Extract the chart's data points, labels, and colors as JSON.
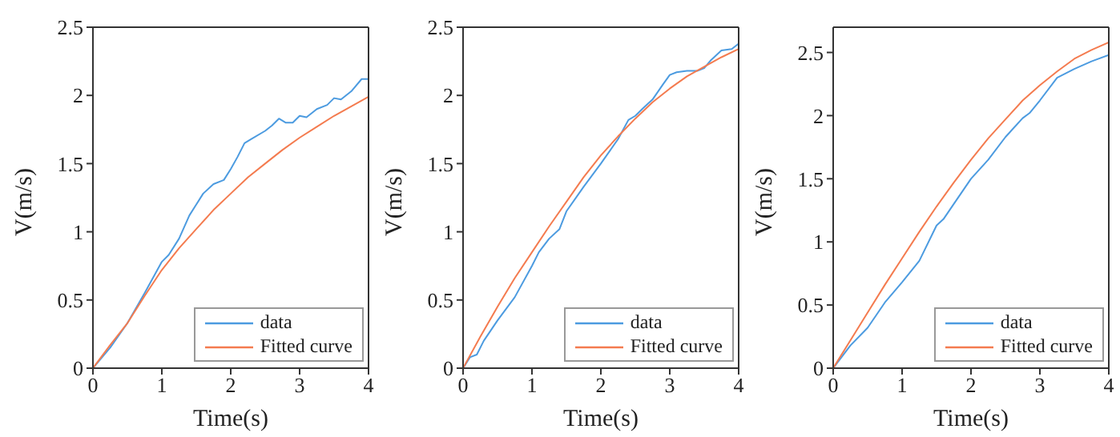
{
  "chart_data": [
    {
      "type": "line",
      "xlabel": "Time(s)",
      "ylabel": "V(m/s)",
      "xlim": [
        0,
        4
      ],
      "ylim": [
        0,
        2.5
      ],
      "xticks": [
        0,
        1,
        2,
        3,
        4
      ],
      "yticks": [
        0,
        0.5,
        1,
        1.5,
        2,
        2.5
      ],
      "legend": "bottom right",
      "marker": "none",
      "line_style": "solid",
      "series": [
        {
          "name": "data",
          "color": "#4c9be0",
          "x": [
            0,
            0.25,
            0.5,
            0.75,
            1,
            1.1,
            1.25,
            1.4,
            1.5,
            1.6,
            1.75,
            1.9,
            2,
            2.1,
            2.2,
            2.3,
            2.5,
            2.6,
            2.7,
            2.8,
            2.9,
            3,
            3.1,
            3.25,
            3.4,
            3.5,
            3.6,
            3.75,
            3.9,
            4
          ],
          "values": [
            0,
            0.15,
            0.33,
            0.55,
            0.78,
            0.83,
            0.95,
            1.12,
            1.2,
            1.28,
            1.35,
            1.38,
            1.46,
            1.55,
            1.65,
            1.68,
            1.74,
            1.78,
            1.83,
            1.8,
            1.8,
            1.85,
            1.84,
            1.9,
            1.93,
            1.98,
            1.97,
            2.03,
            2.12,
            2.12
          ]
        },
        {
          "name": "Fitted curve",
          "color": "#f47b4f",
          "x": [
            0,
            0.25,
            0.5,
            0.75,
            1,
            1.25,
            1.5,
            1.75,
            2,
            2.25,
            2.5,
            2.75,
            3,
            3.25,
            3.5,
            3.75,
            4
          ],
          "values": [
            0,
            0.17,
            0.33,
            0.53,
            0.72,
            0.88,
            1.02,
            1.16,
            1.28,
            1.4,
            1.5,
            1.6,
            1.69,
            1.77,
            1.85,
            1.92,
            1.99
          ]
        }
      ]
    },
    {
      "type": "line",
      "xlabel": "Time(s)",
      "ylabel": "V(m/s)",
      "xlim": [
        0,
        4
      ],
      "ylim": [
        0,
        2.5
      ],
      "xticks": [
        0,
        1,
        2,
        3,
        4
      ],
      "yticks": [
        0,
        0.5,
        1,
        1.5,
        2,
        2.5
      ],
      "legend": "bottom right",
      "marker": "none",
      "line_style": "solid",
      "series": [
        {
          "name": "data",
          "color": "#4c9be0",
          "x": [
            0,
            0.1,
            0.2,
            0.3,
            0.5,
            0.75,
            1,
            1.1,
            1.25,
            1.4,
            1.5,
            1.75,
            2,
            2.25,
            2.4,
            2.5,
            2.6,
            2.75,
            2.9,
            3,
            3.1,
            3.25,
            3.4,
            3.5,
            3.6,
            3.75,
            3.9,
            4
          ],
          "values": [
            0,
            0.08,
            0.1,
            0.2,
            0.35,
            0.52,
            0.75,
            0.85,
            0.95,
            1.02,
            1.15,
            1.33,
            1.5,
            1.68,
            1.82,
            1.85,
            1.9,
            1.97,
            2.08,
            2.15,
            2.17,
            2.18,
            2.18,
            2.2,
            2.26,
            2.33,
            2.34,
            2.38
          ]
        },
        {
          "name": "Fitted curve",
          "color": "#f47b4f",
          "x": [
            0,
            0.25,
            0.5,
            0.75,
            1,
            1.25,
            1.5,
            1.75,
            2,
            2.25,
            2.5,
            2.75,
            3,
            3.25,
            3.5,
            3.75,
            4
          ],
          "values": [
            0,
            0.23,
            0.45,
            0.66,
            0.85,
            1.04,
            1.22,
            1.4,
            1.56,
            1.7,
            1.83,
            1.95,
            2.05,
            2.14,
            2.21,
            2.28,
            2.34
          ]
        }
      ]
    },
    {
      "type": "line",
      "xlabel": "Time(s)",
      "ylabel": "V(m/s)",
      "xlim": [
        0,
        4
      ],
      "ylim": [
        0,
        2.7
      ],
      "xticks": [
        0,
        1,
        2,
        3,
        4
      ],
      "yticks": [
        0,
        0.5,
        1,
        1.5,
        2,
        2.5
      ],
      "legend": "bottom right",
      "marker": "none",
      "line_style": "solid",
      "series": [
        {
          "name": "data",
          "color": "#4c9be0",
          "x": [
            0,
            0.25,
            0.5,
            0.75,
            1,
            1.25,
            1.5,
            1.6,
            1.75,
            2,
            2.25,
            2.5,
            2.75,
            2.85,
            3,
            3.25,
            3.5,
            3.75,
            4
          ],
          "values": [
            0,
            0.18,
            0.32,
            0.52,
            0.68,
            0.85,
            1.13,
            1.18,
            1.3,
            1.5,
            1.65,
            1.83,
            1.98,
            2.02,
            2.12,
            2.3,
            2.37,
            2.43,
            2.48
          ]
        },
        {
          "name": "Fitted curve",
          "color": "#f47b4f",
          "x": [
            0,
            0.25,
            0.5,
            0.75,
            1,
            1.25,
            1.5,
            1.75,
            2,
            2.25,
            2.5,
            2.75,
            3,
            3.25,
            3.5,
            3.75,
            4
          ],
          "values": [
            0,
            0.22,
            0.44,
            0.66,
            0.87,
            1.08,
            1.28,
            1.47,
            1.65,
            1.82,
            1.97,
            2.12,
            2.24,
            2.35,
            2.45,
            2.52,
            2.58
          ]
        }
      ]
    }
  ]
}
